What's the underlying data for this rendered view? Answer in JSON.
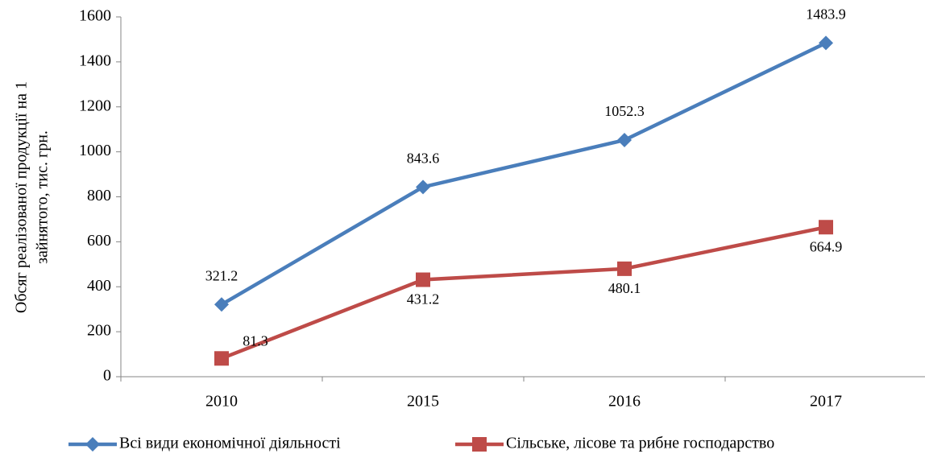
{
  "chart_data": {
    "type": "line",
    "ylabel": [
      "Обсяг реалізованої продукції на 1",
      "зайнятого, тис. грн."
    ],
    "categories": [
      "2010",
      "2015",
      "2016",
      "2017"
    ],
    "series": [
      {
        "name": "Всі види економічної діяльності",
        "color": "#4a7ebb",
        "marker": "diamond",
        "values": [
          321.2,
          843.6,
          1052.3,
          1483.9
        ]
      },
      {
        "name": "Сільське, лісове та рибне господарство",
        "color": "#be4b48",
        "marker": "square",
        "values": [
          81.3,
          431.2,
          480.1,
          664.9
        ]
      }
    ],
    "ylim": [
      0,
      1600
    ],
    "yticks": [
      0,
      200,
      400,
      600,
      800,
      1000,
      1200,
      1400,
      1600
    ],
    "grid": false,
    "legend": "bottom"
  }
}
